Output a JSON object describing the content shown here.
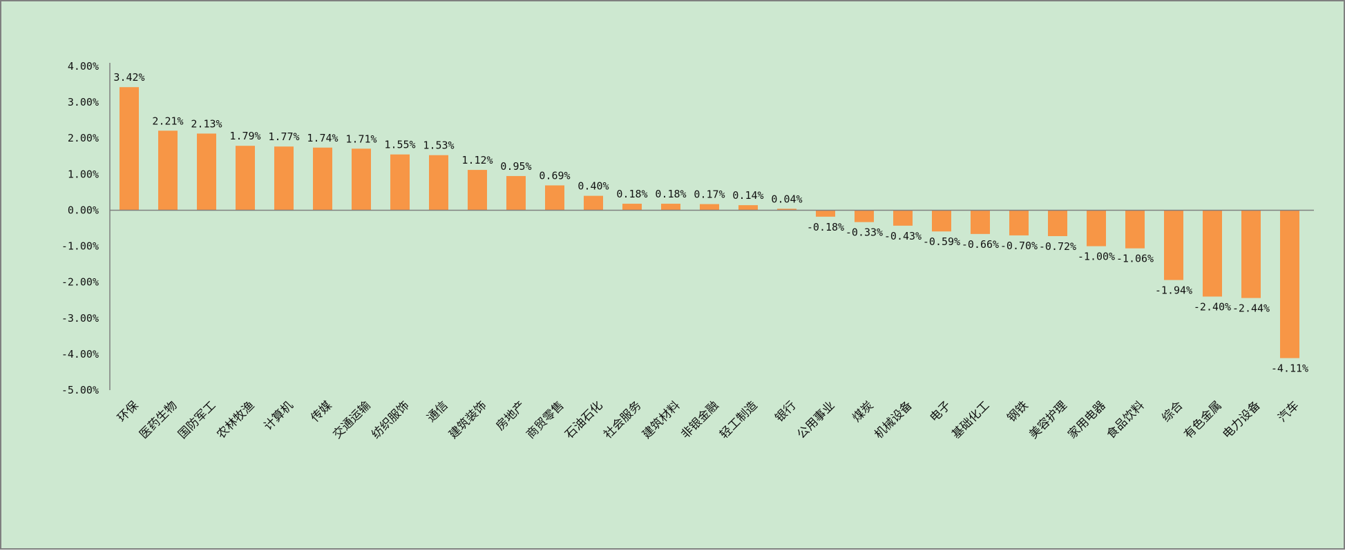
{
  "colors": {
    "background": "#cde8d0",
    "border": "#7f7f7f",
    "bar": "#f79646",
    "axis": "#7f7f7f"
  },
  "chart_data": {
    "type": "bar",
    "title": "",
    "xlabel": "",
    "ylabel": "",
    "ylim": [
      -5.0,
      4.0
    ],
    "y_ticks": [
      4,
      3,
      2,
      1,
      0,
      -1,
      -2,
      -3,
      -4,
      -5
    ],
    "y_tick_labels": [
      "4.00%",
      "3.00%",
      "2.00%",
      "1.00%",
      "0.00%",
      "-1.00%",
      "-2.00%",
      "-3.00%",
      "-4.00%",
      "-5.00%"
    ],
    "grid": false,
    "legend": "none",
    "categories": [
      "环保",
      "医药生物",
      "国防军工",
      "农林牧渔",
      "计算机",
      "传媒",
      "交通运输",
      "纺织服饰",
      "通信",
      "建筑装饰",
      "房地产",
      "商贸零售",
      "石油石化",
      "社会服务",
      "建筑材料",
      "非银金融",
      "轻工制造",
      "银行",
      "公用事业",
      "煤炭",
      "机械设备",
      "电子",
      "基础化工",
      "钢铁",
      "美容护理",
      "家用电器",
      "食品饮料",
      "综合",
      "有色金属",
      "电力设备",
      "汽车"
    ],
    "values": [
      3.42,
      2.21,
      2.13,
      1.79,
      1.77,
      1.74,
      1.71,
      1.55,
      1.53,
      1.12,
      0.95,
      0.69,
      0.4,
      0.18,
      0.18,
      0.17,
      0.14,
      0.04,
      -0.18,
      -0.33,
      -0.43,
      -0.59,
      -0.66,
      -0.7,
      -0.72,
      -1.0,
      -1.06,
      -1.94,
      -2.4,
      -2.44,
      -4.11
    ],
    "data_labels": [
      "3.42%",
      "2.21%",
      "2.13%",
      "1.79%",
      "1.77%",
      "1.74%",
      "1.71%",
      "1.55%",
      "1.53%",
      "1.12%",
      "0.95%",
      "0.69%",
      "0.40%",
      "0.18%",
      "0.18%",
      "0.17%",
      "0.14%",
      "0.04%",
      "-0.18%",
      "-0.33%",
      "-0.43%",
      "-0.59%",
      "-0.66%",
      "-0.70%",
      "-0.72%",
      "-1.00%",
      "-1.06%",
      "-1.94%",
      "-2.40%",
      "-2.44%",
      "-4.11%"
    ]
  }
}
